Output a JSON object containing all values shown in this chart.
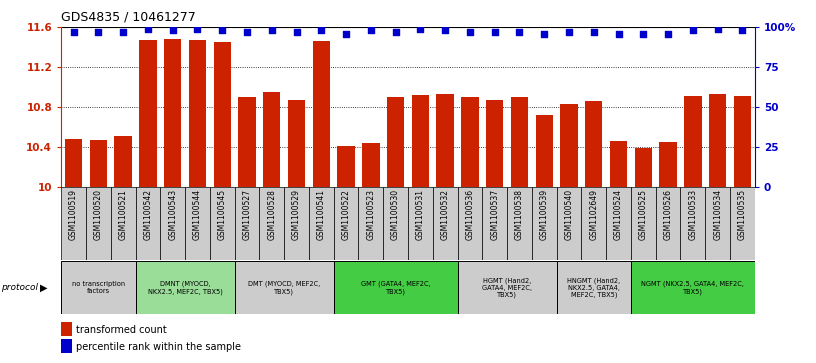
{
  "title": "GDS4835 / 10461277",
  "samples": [
    "GSM1100519",
    "GSM1100520",
    "GSM1100521",
    "GSM1100542",
    "GSM1100543",
    "GSM1100544",
    "GSM1100545",
    "GSM1100527",
    "GSM1100528",
    "GSM1100529",
    "GSM1100541",
    "GSM1100522",
    "GSM1100523",
    "GSM1100530",
    "GSM1100531",
    "GSM1100532",
    "GSM1100536",
    "GSM1100537",
    "GSM1100538",
    "GSM1100539",
    "GSM1100540",
    "GSM1102649",
    "GSM1100524",
    "GSM1100525",
    "GSM1100526",
    "GSM1100533",
    "GSM1100534",
    "GSM1100535"
  ],
  "bar_values": [
    10.48,
    10.47,
    10.51,
    11.47,
    11.48,
    11.47,
    11.45,
    10.9,
    10.95,
    10.87,
    11.46,
    10.41,
    10.44,
    10.9,
    10.92,
    10.93,
    10.9,
    10.87,
    10.9,
    10.72,
    10.83,
    10.86,
    10.46,
    10.39,
    10.45,
    10.91,
    10.93,
    10.91
  ],
  "percentile_values": [
    97,
    97,
    97,
    99,
    98,
    99,
    98,
    97,
    98,
    97,
    98,
    96,
    98,
    97,
    99,
    98,
    97,
    97,
    97,
    96,
    97,
    97,
    96,
    96,
    96,
    98,
    99,
    98
  ],
  "ylim_left": [
    10.0,
    11.6
  ],
  "ylim_right": [
    0,
    100
  ],
  "yticks_left": [
    10.0,
    10.4,
    10.8,
    11.2,
    11.6
  ],
  "ytick_labels_left": [
    "10",
    "10.4",
    "10.8",
    "11.2",
    "11.6"
  ],
  "yticks_right": [
    0,
    25,
    50,
    75,
    100
  ],
  "ytick_labels_right": [
    "0",
    "25",
    "50",
    "75",
    "100%"
  ],
  "bar_color": "#CC2200",
  "dot_color": "#0000CC",
  "bg_color_plot": "#FFFFFF",
  "protocol_groups": [
    {
      "label": "no transcription\nfactors",
      "start": 0,
      "end": 3,
      "color": "#CCCCCC"
    },
    {
      "label": "DMNT (MYOCD,\nNKX2.5, MEF2C, TBX5)",
      "start": 3,
      "end": 7,
      "color": "#99DD99"
    },
    {
      "label": "DMT (MYOCD, MEF2C,\nTBX5)",
      "start": 7,
      "end": 11,
      "color": "#CCCCCC"
    },
    {
      "label": "GMT (GATA4, MEF2C,\nTBX5)",
      "start": 11,
      "end": 16,
      "color": "#44CC44"
    },
    {
      "label": "HGMT (Hand2,\nGATA4, MEF2C,\nTBX5)",
      "start": 16,
      "end": 20,
      "color": "#CCCCCC"
    },
    {
      "label": "HNGMT (Hand2,\nNKX2.5, GATA4,\nMEF2C, TBX5)",
      "start": 20,
      "end": 23,
      "color": "#CCCCCC"
    },
    {
      "label": "NGMT (NKX2.5, GATA4, MEF2C,\nTBX5)",
      "start": 23,
      "end": 28,
      "color": "#44CC44"
    }
  ],
  "legend_bar_label": "transformed count",
  "legend_dot_label": "percentile rank within the sample",
  "xlabel_protocol": "protocol"
}
